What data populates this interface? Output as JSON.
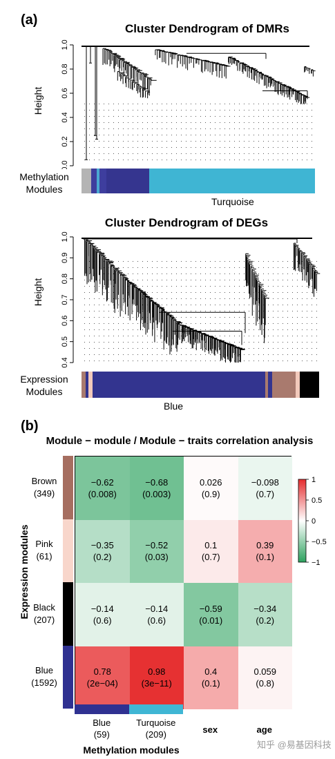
{
  "panel_a_label": "(a)",
  "panel_b_label": "(b)",
  "watermark": "知乎 @易基因科技",
  "chart_data": [
    {
      "type": "dendrogram",
      "title": "Cluster Dendrogram of DMRs",
      "ylabel": "Height",
      "ylim": [
        0,
        1
      ],
      "y_ticks": [
        "0.0",
        "0.2",
        "0.4",
        "0.6",
        "0.8",
        "1.0"
      ],
      "module_label": "Methylation\nModules",
      "highlight_label": "Turquoise",
      "module_colors": [
        "#b4b4b4",
        "#3e3e9e",
        "#4aa9d2",
        "#35358f",
        "#3fb5d3"
      ]
    },
    {
      "type": "dendrogram",
      "title": "Cluster Dendrogram of DEGs",
      "ylabel": "Height",
      "ylim": [
        0.4,
        1
      ],
      "y_ticks": [
        "0.4",
        "0.5",
        "0.6",
        "0.7",
        "0.8",
        "0.9",
        "1.0"
      ],
      "module_label": "Expression\nModules",
      "highlight_label": "Blue",
      "module_colors": [
        "#a97a6e",
        "#f2c9bb",
        "#33348f",
        "#a97a6e",
        "#000000"
      ]
    },
    {
      "type": "heatmap",
      "title": "Module − module / Module − traits correlation analysis",
      "ylabel": "Expression modules",
      "xlabel": "Methylation modules",
      "rows": [
        {
          "name": "Brown",
          "count": "(349)",
          "color": "#a66e60"
        },
        {
          "name": "Pink",
          "count": "(61)",
          "color": "#f8d6cb"
        },
        {
          "name": "Black",
          "count": "(207)",
          "color": "#000000"
        },
        {
          "name": "Blue",
          "count": "(1592)",
          "color": "#2f3191"
        }
      ],
      "columns": [
        {
          "name": "Blue",
          "count": "(59)",
          "color": "#2f3191",
          "bold": false
        },
        {
          "name": "Turquoise",
          "count": "(209)",
          "color": "#3fb6d4",
          "bold": false
        },
        {
          "name": "sex",
          "count": "",
          "color": "",
          "bold": true
        },
        {
          "name": "age",
          "count": "",
          "color": "",
          "bold": true
        }
      ],
      "values": [
        [
          -0.62,
          -0.68,
          0.026,
          -0.098
        ],
        [
          -0.35,
          -0.52,
          0.1,
          0.39
        ],
        [
          -0.14,
          -0.14,
          -0.59,
          -0.34
        ],
        [
          0.78,
          0.98,
          0.4,
          0.059
        ]
      ],
      "labels": [
        [
          "−0.62",
          "−0.68",
          "0.026",
          "−0.098"
        ],
        [
          "−0.35",
          "−0.52",
          "0.1",
          "0.39"
        ],
        [
          "−0.14",
          "−0.14",
          "−0.59",
          "−0.34"
        ],
        [
          "0.78",
          "0.98",
          "0.4",
          "0.059"
        ]
      ],
      "pvalues": [
        [
          "(0.008)",
          "(0.003)",
          "(0.9)",
          "(0.7)"
        ],
        [
          "(0.2)",
          "(0.03)",
          "(0.7)",
          "(0.1)"
        ],
        [
          "(0.6)",
          "(0.6)",
          "(0.01)",
          "(0.2)"
        ],
        [
          "(2e−04)",
          "(3e−11)",
          "(0.1)",
          "(0.8)"
        ]
      ],
      "colorbar_ticks": [
        "1",
        "0.5",
        "0",
        "−0.5",
        "−1"
      ],
      "colorbar_range": [
        -1,
        1
      ],
      "colors": {
        "positive": "#e31a1c",
        "zero": "#ffffff",
        "negative": "#1a9a50"
      }
    }
  ]
}
